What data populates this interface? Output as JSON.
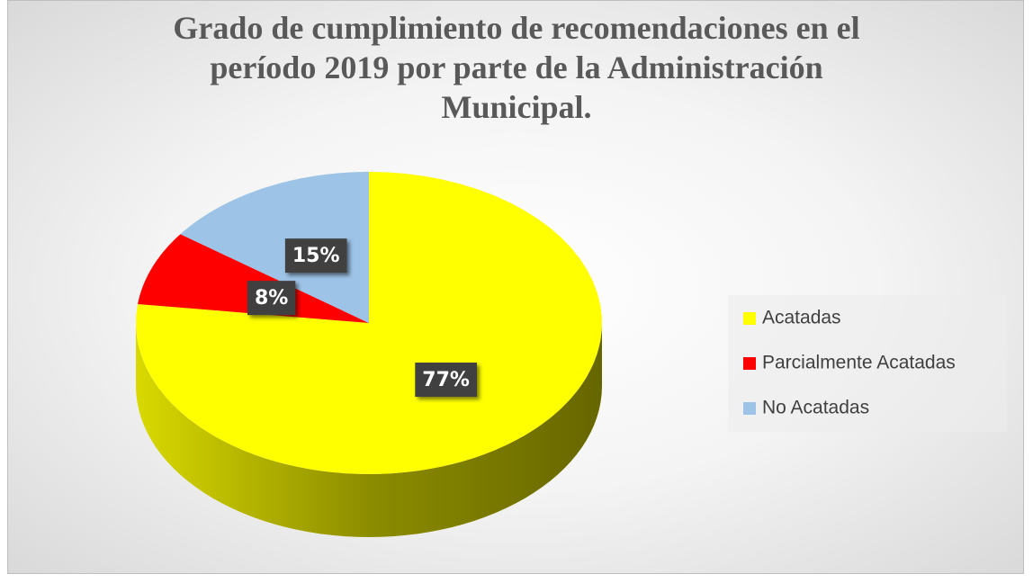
{
  "chart_data": {
    "type": "pie",
    "title": "Grado de cumplimiento de recomendaciones en el período 2019 por parte de la Administración Municipal.",
    "categories": [
      "Acatadas",
      "Parcialmente Acatadas",
      "No Acatadas"
    ],
    "values": [
      77,
      8,
      15
    ],
    "value_labels": [
      "77%",
      "8%",
      "15%"
    ],
    "colors": [
      "#ffff00",
      "#ff0000",
      "#9dc3e6"
    ],
    "legend": "right"
  }
}
